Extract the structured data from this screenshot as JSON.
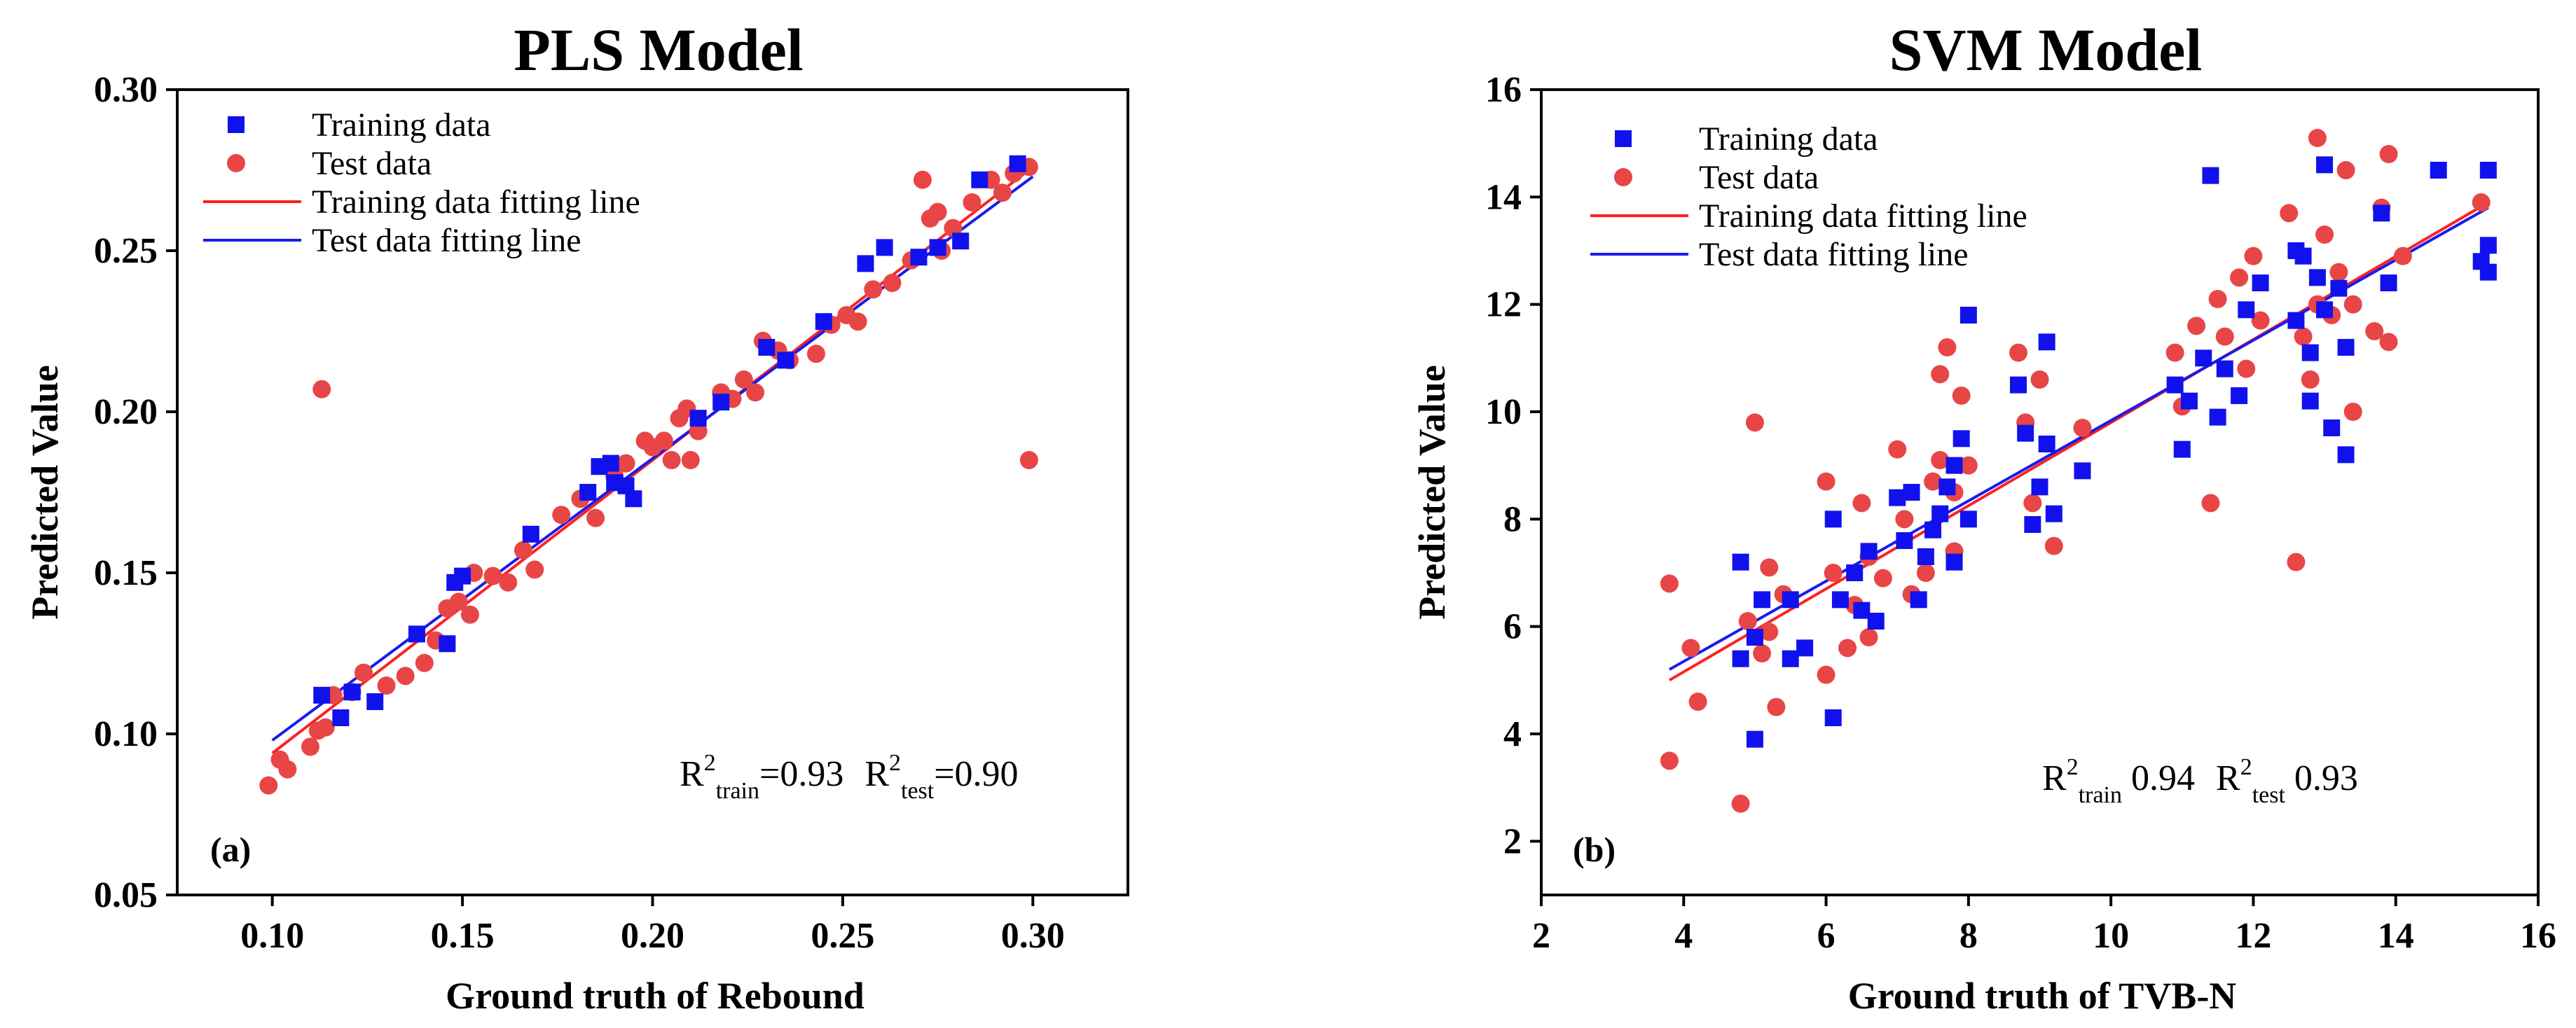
{
  "colors": {
    "training": "#1111ee",
    "test": "#e84646",
    "training_fit": "#ff2020",
    "test_fit": "#1a1aee"
  },
  "chart_data": [
    {
      "type": "scatter",
      "panel_label": "(a)",
      "title": "PLS Model",
      "xlabel": "Ground truth of Rebound",
      "ylabel": "Predicted Value",
      "xlim": [
        0.075,
        0.325
      ],
      "ylim": [
        0.05,
        0.3
      ],
      "xticks": [
        "0.10",
        "0.15",
        "0.20",
        "0.25",
        "0.30"
      ],
      "yticks": [
        "0.05",
        "0.10",
        "0.15",
        "0.20",
        "0.25",
        "0.30"
      ],
      "legend_position": "top-left",
      "legend": [
        "Training data",
        "Test data",
        "Training data fitting line",
        "Test data fitting line"
      ],
      "annotation": {
        "r2_train_label": "train",
        "r2_train_value": "=0.93",
        "r2_test_label": "test",
        "r2_test_value": "=0.90"
      },
      "series": [
        {
          "name": "Training data",
          "marker": "square",
          "points": [
            [
              0.113,
              0.112
            ],
            [
              0.118,
              0.105
            ],
            [
              0.121,
              0.113
            ],
            [
              0.127,
              0.11
            ],
            [
              0.138,
              0.131
            ],
            [
              0.146,
              0.128
            ],
            [
              0.148,
              0.147
            ],
            [
              0.15,
              0.149
            ],
            [
              0.168,
              0.162
            ],
            [
              0.183,
              0.175
            ],
            [
              0.186,
              0.183
            ],
            [
              0.189,
              0.184
            ],
            [
              0.19,
              0.178
            ],
            [
              0.193,
              0.177
            ],
            [
              0.195,
              0.173
            ],
            [
              0.212,
              0.198
            ],
            [
              0.218,
              0.203
            ],
            [
              0.23,
              0.22
            ],
            [
              0.235,
              0.216
            ],
            [
              0.245,
              0.228
            ],
            [
              0.256,
              0.246
            ],
            [
              0.261,
              0.251
            ],
            [
              0.27,
              0.248
            ],
            [
              0.275,
              0.251
            ],
            [
              0.281,
              0.253
            ],
            [
              0.286,
              0.272
            ],
            [
              0.296,
              0.277
            ]
          ]
        },
        {
          "name": "Test data",
          "marker": "circle",
          "points": [
            [
              0.099,
              0.084
            ],
            [
              0.102,
              0.092
            ],
            [
              0.104,
              0.089
            ],
            [
              0.11,
              0.096
            ],
            [
              0.112,
              0.101
            ],
            [
              0.114,
              0.102
            ],
            [
              0.113,
              0.207
            ],
            [
              0.116,
              0.112
            ],
            [
              0.121,
              0.113
            ],
            [
              0.124,
              0.119
            ],
            [
              0.13,
              0.115
            ],
            [
              0.135,
              0.118
            ],
            [
              0.14,
              0.122
            ],
            [
              0.143,
              0.129
            ],
            [
              0.146,
              0.139
            ],
            [
              0.149,
              0.141
            ],
            [
              0.152,
              0.137
            ],
            [
              0.153,
              0.15
            ],
            [
              0.158,
              0.149
            ],
            [
              0.162,
              0.147
            ],
            [
              0.166,
              0.157
            ],
            [
              0.169,
              0.151
            ],
            [
              0.176,
              0.168
            ],
            [
              0.181,
              0.173
            ],
            [
              0.185,
              0.167
            ],
            [
              0.19,
              0.18
            ],
            [
              0.193,
              0.184
            ],
            [
              0.198,
              0.191
            ],
            [
              0.2,
              0.189
            ],
            [
              0.203,
              0.191
            ],
            [
              0.205,
              0.185
            ],
            [
              0.207,
              0.198
            ],
            [
              0.209,
              0.201
            ],
            [
              0.21,
              0.185
            ],
            [
              0.212,
              0.194
            ],
            [
              0.218,
              0.206
            ],
            [
              0.221,
              0.204
            ],
            [
              0.224,
              0.21
            ],
            [
              0.227,
              0.206
            ],
            [
              0.229,
              0.222
            ],
            [
              0.233,
              0.219
            ],
            [
              0.236,
              0.216
            ],
            [
              0.243,
              0.218
            ],
            [
              0.247,
              0.227
            ],
            [
              0.251,
              0.23
            ],
            [
              0.254,
              0.228
            ],
            [
              0.258,
              0.238
            ],
            [
              0.263,
              0.24
            ],
            [
              0.268,
              0.247
            ],
            [
              0.271,
              0.272
            ],
            [
              0.273,
              0.26
            ],
            [
              0.275,
              0.262
            ],
            [
              0.276,
              0.25
            ],
            [
              0.279,
              0.257
            ],
            [
              0.284,
              0.265
            ],
            [
              0.289,
              0.272
            ],
            [
              0.292,
              0.268
            ],
            [
              0.295,
              0.274
            ],
            [
              0.299,
              0.276
            ],
            [
              0.299,
              0.185
            ]
          ]
        },
        {
          "name": "Training data fitting line",
          "type": "line",
          "points": [
            [
              0.1,
              0.094
            ],
            [
              0.3,
              0.276
            ]
          ]
        },
        {
          "name": "Test data fitting line",
          "type": "line",
          "points": [
            [
              0.1,
              0.098
            ],
            [
              0.3,
              0.273
            ]
          ]
        }
      ]
    },
    {
      "type": "scatter",
      "panel_label": "(b)",
      "title": "SVM Model",
      "xlabel": "Ground truth of TVB-N",
      "ylabel": "Predicted Value",
      "xlim": [
        2,
        16
      ],
      "ylim": [
        1,
        16
      ],
      "xticks": [
        "2",
        "4",
        "6",
        "8",
        "10",
        "12",
        "14",
        "16"
      ],
      "yticks": [
        "2",
        "4",
        "6",
        "8",
        "10",
        "12",
        "14",
        "16"
      ],
      "legend_position": "top-left",
      "legend": [
        "Training data",
        "Test data",
        "Training data fitting line",
        "Test data fitting line"
      ],
      "annotation": {
        "r2_train_label": "train",
        "r2_train_value": " 0.94",
        "r2_test_label": "test",
        "r2_test_value": " 0.93"
      },
      "series": [
        {
          "name": "Training data",
          "marker": "square",
          "points": [
            [
              4.8,
              7.2
            ],
            [
              4.8,
              5.4
            ],
            [
              5.0,
              3.9
            ],
            [
              5.0,
              5.8
            ],
            [
              5.1,
              6.5
            ],
            [
              5.5,
              5.4
            ],
            [
              5.5,
              6.5
            ],
            [
              5.7,
              5.6
            ],
            [
              6.1,
              8.0
            ],
            [
              6.1,
              4.3
            ],
            [
              6.2,
              6.5
            ],
            [
              6.4,
              7.0
            ],
            [
              6.5,
              6.3
            ],
            [
              6.6,
              7.4
            ],
            [
              6.7,
              6.1
            ],
            [
              7.0,
              8.4
            ],
            [
              7.1,
              7.6
            ],
            [
              7.2,
              8.5
            ],
            [
              7.3,
              6.5
            ],
            [
              7.4,
              7.3
            ],
            [
              7.5,
              7.8
            ],
            [
              7.6,
              8.1
            ],
            [
              7.7,
              8.6
            ],
            [
              7.8,
              7.2
            ],
            [
              7.9,
              9.5
            ],
            [
              8.0,
              11.8
            ],
            [
              8.0,
              8.0
            ],
            [
              7.8,
              9.0
            ],
            [
              8.7,
              10.5
            ],
            [
              8.8,
              9.6
            ],
            [
              8.9,
              7.9
            ],
            [
              9.0,
              8.6
            ],
            [
              9.1,
              9.4
            ],
            [
              9.1,
              11.3
            ],
            [
              9.2,
              8.1
            ],
            [
              9.6,
              8.9
            ],
            [
              10.9,
              10.5
            ],
            [
              11.0,
              9.3
            ],
            [
              11.1,
              10.2
            ],
            [
              11.3,
              11.0
            ],
            [
              11.4,
              14.4
            ],
            [
              11.5,
              9.9
            ],
            [
              11.6,
              10.8
            ],
            [
              11.8,
              10.3
            ],
            [
              11.9,
              11.9
            ],
            [
              12.1,
              12.4
            ],
            [
              12.6,
              13.0
            ],
            [
              12.6,
              11.7
            ],
            [
              12.7,
              12.9
            ],
            [
              12.8,
              10.2
            ],
            [
              12.8,
              11.1
            ],
            [
              12.9,
              12.5
            ],
            [
              13.0,
              14.6
            ],
            [
              13.0,
              11.9
            ],
            [
              13.1,
              9.7
            ],
            [
              13.2,
              12.3
            ],
            [
              13.3,
              9.2
            ],
            [
              13.3,
              11.2
            ],
            [
              13.8,
              13.7
            ],
            [
              13.9,
              12.4
            ],
            [
              14.6,
              14.5
            ],
            [
              15.2,
              12.8
            ],
            [
              15.3,
              14.5
            ],
            [
              15.3,
              13.1
            ],
            [
              15.3,
              12.6
            ]
          ]
        },
        {
          "name": "Test data",
          "marker": "circle",
          "points": [
            [
              3.8,
              6.8
            ],
            [
              3.8,
              3.5
            ],
            [
              4.1,
              5.6
            ],
            [
              4.2,
              4.6
            ],
            [
              4.8,
              2.7
            ],
            [
              4.9,
              6.1
            ],
            [
              5.0,
              9.8
            ],
            [
              5.1,
              5.5
            ],
            [
              5.2,
              5.9
            ],
            [
              5.2,
              7.1
            ],
            [
              5.3,
              4.5
            ],
            [
              5.4,
              6.6
            ],
            [
              6.0,
              8.7
            ],
            [
              6.0,
              5.1
            ],
            [
              6.1,
              7.0
            ],
            [
              6.3,
              5.6
            ],
            [
              6.4,
              6.4
            ],
            [
              6.5,
              8.3
            ],
            [
              6.6,
              7.3
            ],
            [
              6.6,
              5.8
            ],
            [
              6.8,
              6.9
            ],
            [
              7.0,
              9.3
            ],
            [
              7.1,
              8.0
            ],
            [
              7.2,
              6.6
            ],
            [
              7.4,
              7.0
            ],
            [
              7.5,
              8.7
            ],
            [
              7.6,
              10.7
            ],
            [
              7.6,
              9.1
            ],
            [
              7.7,
              11.2
            ],
            [
              7.8,
              7.4
            ],
            [
              7.8,
              8.5
            ],
            [
              7.9,
              10.3
            ],
            [
              8.0,
              9.0
            ],
            [
              8.7,
              11.1
            ],
            [
              8.8,
              9.8
            ],
            [
              8.9,
              8.3
            ],
            [
              9.0,
              10.6
            ],
            [
              9.2,
              7.5
            ],
            [
              9.6,
              9.7
            ],
            [
              10.9,
              11.1
            ],
            [
              11.0,
              10.1
            ],
            [
              11.2,
              11.6
            ],
            [
              11.4,
              8.3
            ],
            [
              11.5,
              12.1
            ],
            [
              11.6,
              11.4
            ],
            [
              11.8,
              12.5
            ],
            [
              11.9,
              10.8
            ],
            [
              12.0,
              12.9
            ],
            [
              12.1,
              11.7
            ],
            [
              12.5,
              13.7
            ],
            [
              12.6,
              7.2
            ],
            [
              12.7,
              11.4
            ],
            [
              12.8,
              10.6
            ],
            [
              12.9,
              15.1
            ],
            [
              12.9,
              12.0
            ],
            [
              13.0,
              13.3
            ],
            [
              13.1,
              11.8
            ],
            [
              13.2,
              12.6
            ],
            [
              13.3,
              14.5
            ],
            [
              13.4,
              10.0
            ],
            [
              13.4,
              12.0
            ],
            [
              13.7,
              11.5
            ],
            [
              13.8,
              13.8
            ],
            [
              13.9,
              14.8
            ],
            [
              13.9,
              11.3
            ],
            [
              14.1,
              12.9
            ],
            [
              15.2,
              13.9
            ]
          ]
        },
        {
          "name": "Training data fitting line",
          "type": "line",
          "points": [
            [
              3.8,
              5.0
            ],
            [
              15.3,
              13.9
            ]
          ]
        },
        {
          "name": "Test data fitting line",
          "type": "line",
          "points": [
            [
              3.8,
              5.2
            ],
            [
              15.3,
              13.8
            ]
          ]
        }
      ]
    }
  ]
}
